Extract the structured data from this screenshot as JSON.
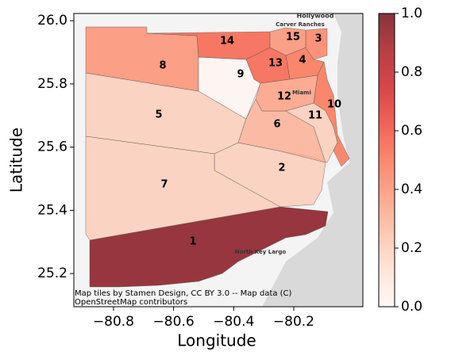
{
  "chart_data": {
    "type": "choropleth",
    "x_label": "Longitude",
    "y_label": "Latitude",
    "xlim": [
      -80.932,
      -79.97
    ],
    "ylim": [
      25.095,
      26.023
    ],
    "xticks": [
      {
        "value": -80.8,
        "label": "−80.8"
      },
      {
        "value": -80.6,
        "label": "−80.6"
      },
      {
        "value": -80.4,
        "label": "−80.4"
      },
      {
        "value": -80.2,
        "label": "−80.2"
      }
    ],
    "yticks": [
      {
        "value": 25.2,
        "label": "25.2"
      },
      {
        "value": 25.4,
        "label": "25.4"
      },
      {
        "value": 25.6,
        "label": "25.6"
      },
      {
        "value": 25.8,
        "label": "25.8"
      },
      {
        "value": 26,
        "label": "26.0"
      }
    ],
    "colormap": "Reds",
    "clim": [
      0,
      1
    ],
    "cticks": [
      {
        "value": 0,
        "label": "0.0"
      },
      {
        "value": 0.2,
        "label": "0.2"
      },
      {
        "value": 0.4,
        "label": "0.4"
      },
      {
        "value": 0.6,
        "label": "0.6"
      },
      {
        "value": 0.8,
        "label": "0.8"
      },
      {
        "value": 1,
        "label": "1.0"
      }
    ],
    "regions": [
      {
        "label": "1",
        "value": 0.95
      },
      {
        "label": "2",
        "value": 0.2
      },
      {
        "label": "3",
        "value": 0.45
      },
      {
        "label": "4",
        "value": 0.5
      },
      {
        "label": "5",
        "value": 0.2
      },
      {
        "label": "6",
        "value": 0.3
      },
      {
        "label": "7",
        "value": 0.2
      },
      {
        "label": "8",
        "value": 0.4
      },
      {
        "label": "9",
        "value": 0
      },
      {
        "label": "10",
        "value": 0.5
      },
      {
        "label": "11",
        "value": 0.2
      },
      {
        "label": "12",
        "value": 0.35
      },
      {
        "label": "13",
        "value": 0.55
      },
      {
        "label": "14",
        "value": 0.55
      },
      {
        "label": "15",
        "value": 0.4
      }
    ],
    "places": [
      "Hollywood",
      "Carver Ranches",
      "Miami",
      "North Key Largo"
    ],
    "attribution": [
      "Map tiles by Stamen Design, CC BY 3.0 -- Map data (C)",
      "OpenStreetMap contributors"
    ]
  }
}
